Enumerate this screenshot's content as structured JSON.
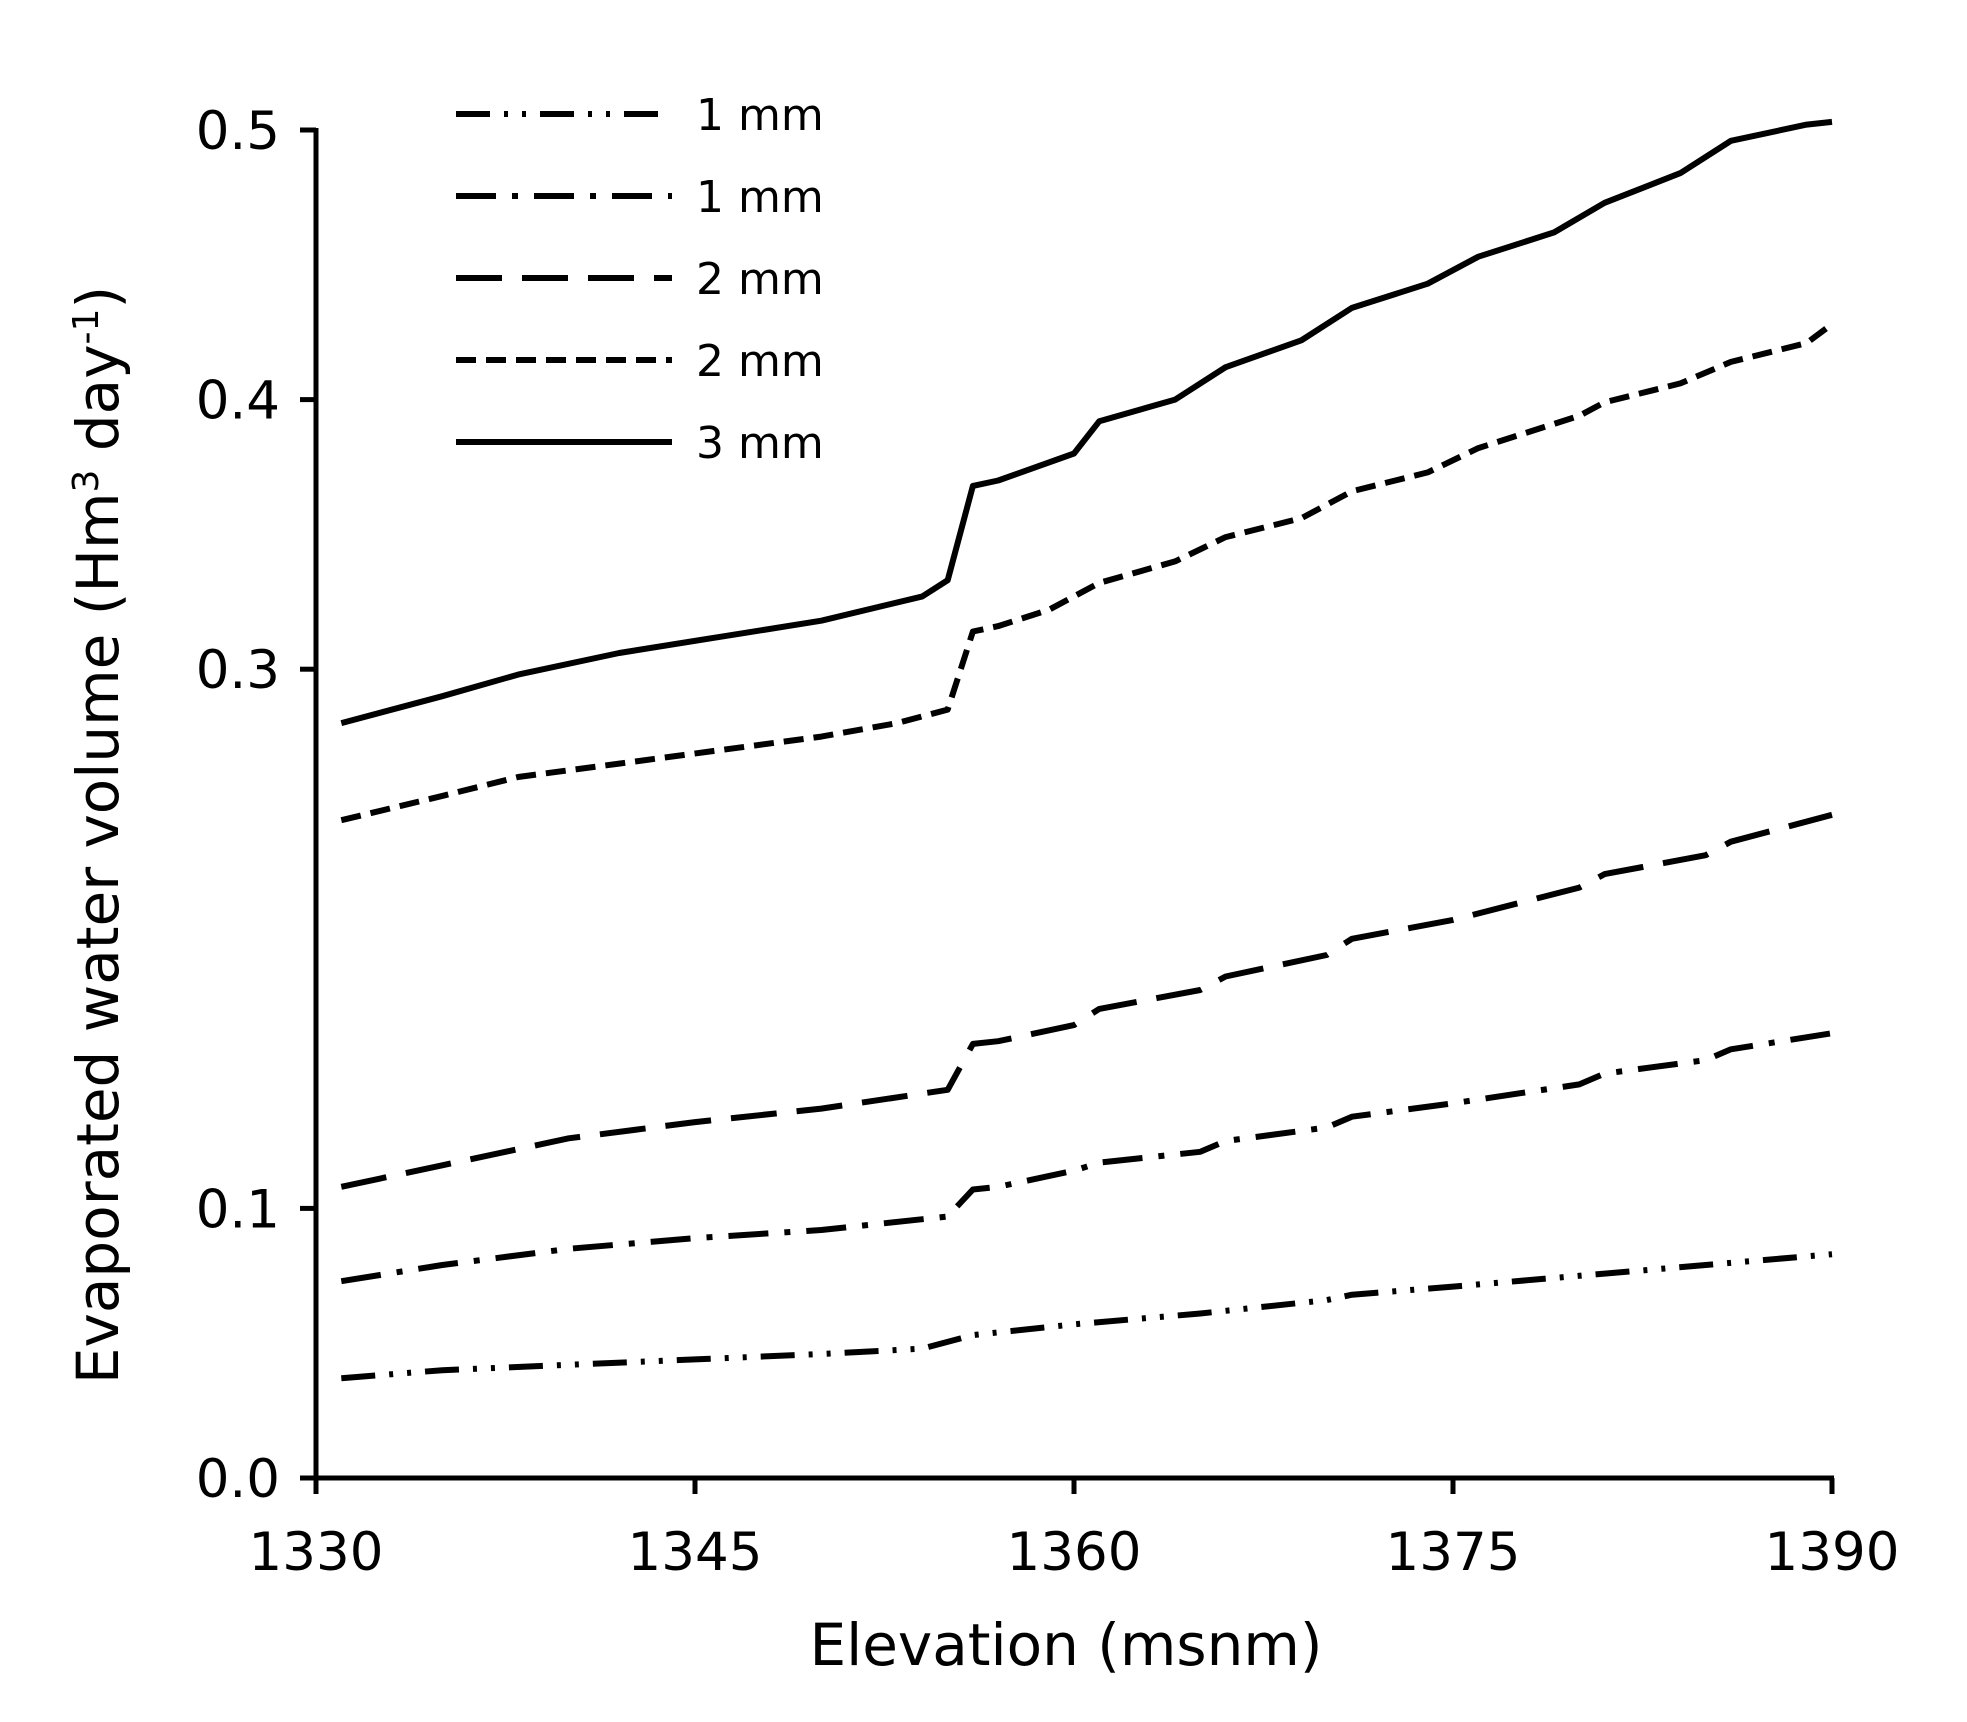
{
  "chart_data": {
    "type": "line",
    "title": "",
    "xlabel": "Elevation (msnm)",
    "ylabel": {
      "main": "Evaporated water volume (Hm",
      "sup1": "3",
      "mid": " day",
      "sup2": "-1",
      "end": ")"
    },
    "xlim": [
      1330,
      1390
    ],
    "ylim": [
      0.0,
      0.5
    ],
    "xticks": [
      "1330",
      "1345",
      "1360",
      "1375",
      "1390"
    ],
    "yticks": [
      "0.0",
      "0.1",
      "0.3",
      "0.4",
      "0.5"
    ],
    "grid": false,
    "legend_position": "top-left",
    "series": [
      {
        "name": "1 mm",
        "style": "dash-dot-dot",
        "x": [
          1331,
          1335,
          1340,
          1345,
          1350,
          1354,
          1356,
          1360,
          1365,
          1370,
          1371,
          1375,
          1380,
          1385,
          1390
        ],
        "y": [
          0.037,
          0.04,
          0.042,
          0.044,
          0.046,
          0.048,
          0.053,
          0.057,
          0.061,
          0.066,
          0.068,
          0.071,
          0.075,
          0.079,
          0.083
        ]
      },
      {
        "name": "1 mm",
        "style": "dash-dot",
        "x": [
          1331,
          1335,
          1340,
          1345,
          1350,
          1355,
          1356,
          1357,
          1360,
          1361,
          1365,
          1366,
          1370,
          1371,
          1375,
          1380,
          1381,
          1385,
          1386,
          1390
        ],
        "y": [
          0.073,
          0.079,
          0.085,
          0.089,
          0.092,
          0.097,
          0.107,
          0.108,
          0.114,
          0.117,
          0.121,
          0.125,
          0.13,
          0.134,
          0.139,
          0.146,
          0.15,
          0.155,
          0.159,
          0.165
        ]
      },
      {
        "name": "2 mm",
        "style": "long-dash",
        "x": [
          1331,
          1335,
          1340,
          1345,
          1350,
          1355,
          1356,
          1357,
          1360,
          1361,
          1365,
          1366,
          1370,
          1371,
          1375,
          1380,
          1381,
          1385,
          1386,
          1390
        ],
        "y": [
          0.108,
          0.116,
          0.126,
          0.132,
          0.137,
          0.144,
          0.161,
          0.162,
          0.168,
          0.174,
          0.181,
          0.186,
          0.194,
          0.2,
          0.207,
          0.219,
          0.224,
          0.231,
          0.236,
          0.246
        ]
      },
      {
        "name": "2 mm",
        "style": "short-dash",
        "x": [
          1331,
          1335,
          1338,
          1342,
          1346,
          1350,
          1353,
          1355,
          1356,
          1357,
          1359,
          1361,
          1364,
          1366,
          1369,
          1371,
          1374,
          1376,
          1380,
          1381,
          1384,
          1386,
          1389,
          1390
        ],
        "y": [
          0.244,
          0.253,
          0.26,
          0.265,
          0.27,
          0.275,
          0.28,
          0.285,
          0.314,
          0.316,
          0.322,
          0.332,
          0.34,
          0.349,
          0.356,
          0.366,
          0.373,
          0.382,
          0.394,
          0.399,
          0.406,
          0.414,
          0.421,
          0.428
        ]
      },
      {
        "name": "3 mm",
        "style": "solid",
        "x": [
          1331,
          1335,
          1338,
          1342,
          1346,
          1350,
          1354,
          1355,
          1356,
          1357,
          1360,
          1361,
          1364,
          1366,
          1369,
          1371,
          1374,
          1376,
          1379,
          1381,
          1384,
          1386,
          1389,
          1390
        ],
        "y": [
          0.28,
          0.29,
          0.298,
          0.306,
          0.312,
          0.318,
          0.327,
          0.333,
          0.368,
          0.37,
          0.38,
          0.392,
          0.4,
          0.412,
          0.422,
          0.434,
          0.443,
          0.453,
          0.462,
          0.473,
          0.484,
          0.496,
          0.502,
          0.503
        ]
      }
    ]
  }
}
